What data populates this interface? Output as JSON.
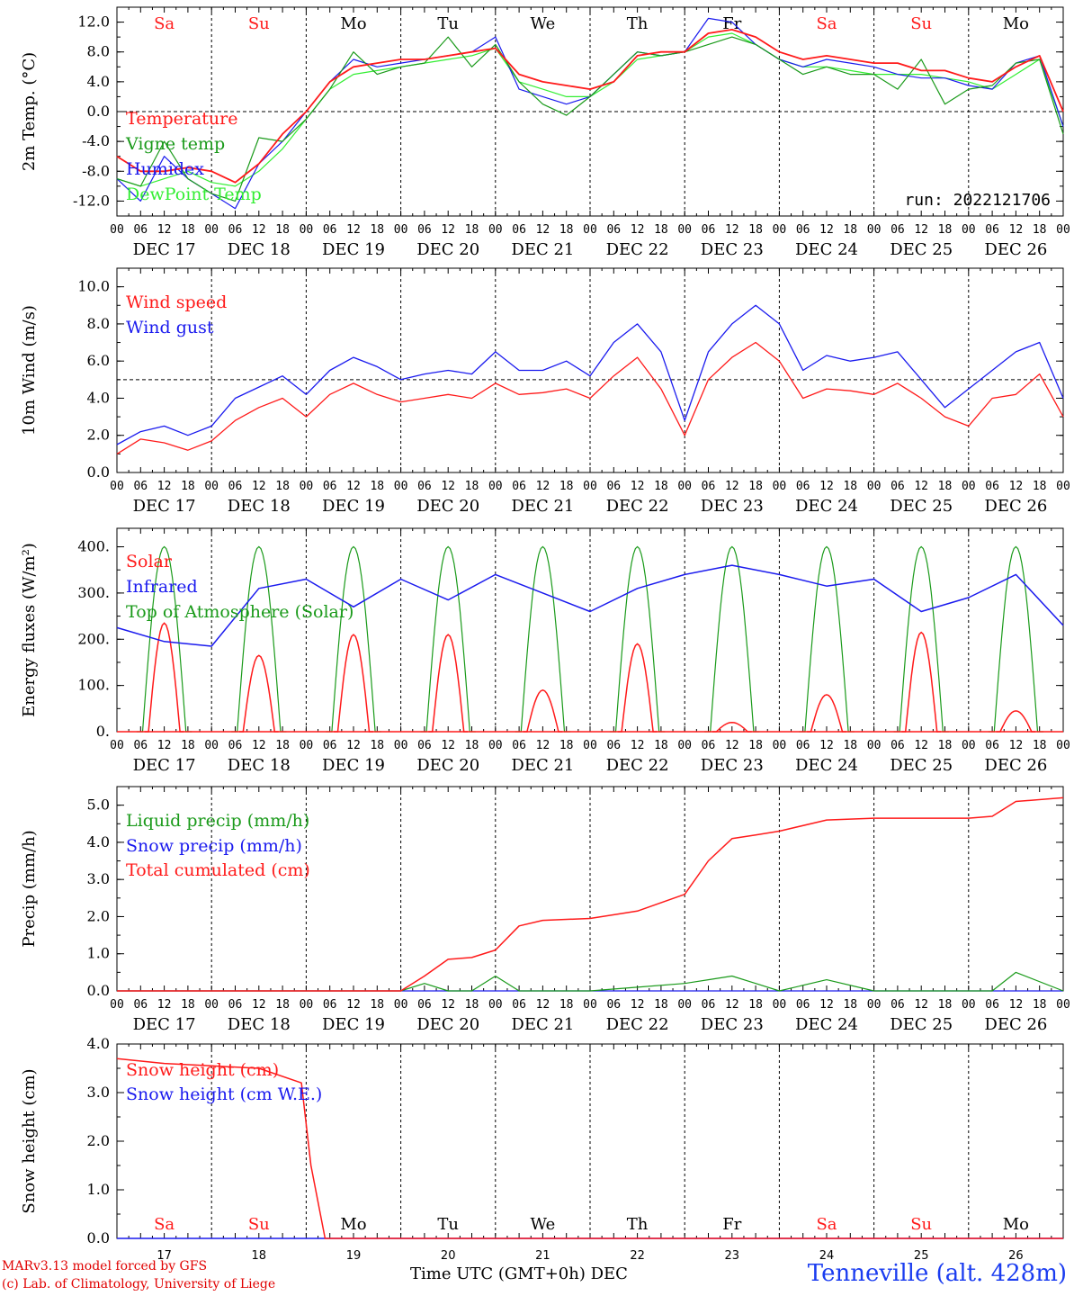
{
  "run_label": "run: 2022121706",
  "time_axis": {
    "hour_ticks": [
      "00",
      "06",
      "12",
      "18"
    ],
    "final_tick": "00",
    "dates": [
      "DEC 17",
      "DEC 18",
      "DEC 19",
      "DEC 20",
      "DEC 21",
      "DEC 22",
      "DEC 23",
      "DEC 24",
      "DEC 25",
      "DEC 26"
    ],
    "weekdays": [
      "Sa",
      "Su",
      "Mo",
      "Tu",
      "We",
      "Th",
      "Fr",
      "Sa",
      "Su",
      "Mo"
    ],
    "weekend_flags": [
      true,
      true,
      false,
      false,
      false,
      false,
      false,
      true,
      true,
      false
    ],
    "day_numbers": [
      "17",
      "18",
      "19",
      "20",
      "21",
      "22",
      "23",
      "24",
      "25",
      "26"
    ],
    "xlabel": "Time UTC (GMT+0h)",
    "month": "DEC"
  },
  "colors": {
    "red": "#ff1a1a",
    "green": "#1a9a1a",
    "blue": "#1a1aee",
    "lightgreen": "#33ee33",
    "weekend": "#ff1a1a"
  },
  "footer": {
    "line1": "MARv3.13 model forced by GFS",
    "line2": "(c) Lab. of Climatology, University of Liege",
    "station": "Tenneville (alt. 428m)"
  },
  "chart_data": [
    {
      "type": "line",
      "ylabel": "2m Temp. (°C)",
      "ylim": [
        -14,
        14
      ],
      "yticks": [
        "12.0",
        "8.0",
        "4.0",
        "0.0",
        "-4.0",
        "-8.0",
        "-12.0"
      ],
      "ytick_values": [
        12,
        8,
        4,
        0,
        -4,
        -8,
        -12
      ],
      "reference_line": 0,
      "x_days": [
        0,
        0.25,
        0.5,
        0.75,
        1,
        1.25,
        1.5,
        1.75,
        2,
        2.25,
        2.5,
        2.75,
        3,
        3.25,
        3.5,
        3.75,
        4,
        4.25,
        4.5,
        4.75,
        5,
        5.25,
        5.5,
        5.75,
        6,
        6.25,
        6.5,
        6.75,
        7,
        7.25,
        7.5,
        7.75,
        8,
        8.25,
        8.5,
        8.75,
        9,
        9.25,
        9.5,
        9.75,
        10
      ],
      "series": [
        {
          "name": "Temperature",
          "color": "red",
          "values": [
            -6,
            -8,
            -8,
            -7.5,
            -8,
            -9.5,
            -7,
            -3,
            0,
            4,
            6,
            6.5,
            7,
            7,
            7.5,
            8,
            8.5,
            5,
            4,
            3.5,
            3,
            4,
            7.5,
            8,
            8,
            10.5,
            11,
            10,
            8,
            7,
            7.5,
            7,
            6.5,
            6.5,
            5.5,
            5.5,
            4.5,
            4,
            6,
            7.5,
            0
          ]
        },
        {
          "name": "Vigne temp",
          "color": "green",
          "values": [
            -9,
            -10,
            -4,
            -9,
            -11,
            -12,
            -3.5,
            -4,
            -1,
            3,
            8,
            5,
            6,
            6.5,
            10,
            6,
            9,
            4,
            1,
            -0.5,
            2,
            5,
            8,
            7.5,
            8,
            9,
            10,
            9,
            7,
            5,
            6,
            5,
            5,
            3,
            7,
            1,
            3,
            3.5,
            6.5,
            7,
            -3
          ]
        },
        {
          "name": "Humidex",
          "color": "blue",
          "values": [
            -9,
            -12,
            -6,
            -9,
            -11,
            -13,
            -7,
            -4,
            0,
            4,
            7,
            6,
            6.5,
            7,
            7.5,
            8,
            10,
            3,
            2,
            1,
            2,
            5,
            8,
            7.5,
            8,
            12.5,
            12,
            9,
            7,
            6,
            7,
            6.5,
            6,
            5,
            4.5,
            4.5,
            3.5,
            3,
            6.5,
            7.5,
            -2
          ]
        },
        {
          "name": "DewPoint Temp",
          "color": "lightgreen",
          "values": [
            -9,
            -10,
            -9,
            -8,
            -9.5,
            -10,
            -8,
            -5,
            -1,
            3,
            5,
            5.5,
            6,
            6.5,
            7,
            7.5,
            8.5,
            4,
            3,
            2,
            2,
            4,
            7,
            7.5,
            8,
            10,
            10.5,
            9,
            7,
            6,
            6,
            5.5,
            5,
            5,
            5,
            4.5,
            4,
            3,
            5,
            7,
            -2
          ]
        }
      ]
    },
    {
      "type": "line",
      "ylabel": "10m Wind (m/s)",
      "ylim": [
        0,
        11
      ],
      "yticks": [
        "10.0",
        "8.0",
        "6.0",
        "4.0",
        "2.0",
        "0.0"
      ],
      "ytick_values": [
        10,
        8,
        6,
        4,
        2,
        0
      ],
      "reference_line": 5,
      "x_days": [
        0,
        0.25,
        0.5,
        0.75,
        1,
        1.25,
        1.5,
        1.75,
        2,
        2.25,
        2.5,
        2.75,
        3,
        3.25,
        3.5,
        3.75,
        4,
        4.25,
        4.5,
        4.75,
        5,
        5.25,
        5.5,
        5.75,
        6,
        6.25,
        6.5,
        6.75,
        7,
        7.25,
        7.5,
        7.75,
        8,
        8.25,
        8.5,
        8.75,
        9,
        9.25,
        9.5,
        9.75,
        10
      ],
      "series": [
        {
          "name": "Wind speed",
          "color": "red",
          "values": [
            1,
            1.8,
            1.6,
            1.2,
            1.7,
            2.8,
            3.5,
            4,
            3,
            4.2,
            4.8,
            4.2,
            3.8,
            4,
            4.2,
            4,
            4.8,
            4.2,
            4.3,
            4.5,
            4,
            5.2,
            6.2,
            4.5,
            2,
            5,
            6.2,
            7,
            6,
            4,
            4.5,
            4.4,
            4.2,
            4.8,
            4,
            3,
            2.5,
            4,
            4.2,
            5.3,
            3
          ]
        },
        {
          "name": "Wind gust",
          "color": "blue",
          "values": [
            1.5,
            2.2,
            2.5,
            2,
            2.5,
            4,
            4.6,
            5.2,
            4.2,
            5.5,
            6.2,
            5.7,
            5,
            5.3,
            5.5,
            5.3,
            6.5,
            5.5,
            5.5,
            6,
            5.2,
            7,
            8,
            6.5,
            2.8,
            6.5,
            8,
            9,
            8,
            5.5,
            6.3,
            6,
            6.2,
            6.5,
            5,
            3.5,
            4.5,
            5.5,
            6.5,
            7,
            4
          ]
        }
      ]
    },
    {
      "type": "line",
      "ylabel": "Energy fluxes (W/m²)",
      "ylim": [
        0,
        440
      ],
      "yticks": [
        "400.",
        "300.",
        "200.",
        "100.",
        "0."
      ],
      "ytick_values": [
        400,
        300,
        200,
        100,
        0
      ],
      "solar_peaks": [
        235,
        165,
        210,
        210,
        90,
        190,
        20,
        80,
        215,
        45
      ],
      "toa_peak": 400,
      "infrared": {
        "x_days": [
          0,
          0.5,
          1,
          1.5,
          2,
          2.5,
          3,
          3.5,
          4,
          4.5,
          5,
          5.5,
          6,
          6.5,
          7,
          7.5,
          8,
          8.5,
          9,
          9.5,
          10
        ],
        "values": [
          225,
          195,
          185,
          310,
          330,
          270,
          330,
          285,
          340,
          300,
          260,
          310,
          340,
          360,
          340,
          315,
          330,
          260,
          290,
          340,
          230
        ]
      },
      "series": [
        {
          "name": "Solar",
          "color": "red"
        },
        {
          "name": "Infrared",
          "color": "blue"
        },
        {
          "name": "Top of Atmosphere (Solar)",
          "color": "green"
        }
      ]
    },
    {
      "type": "line",
      "ylabel": "Precip (mm/h)",
      "ylim": [
        0,
        5.5
      ],
      "yticks": [
        "5.0",
        "4.0",
        "3.0",
        "2.0",
        "1.0",
        "0.0"
      ],
      "ytick_values": [
        5,
        4,
        3,
        2,
        1,
        0
      ],
      "x_days": [
        0,
        1,
        2,
        3,
        3.25,
        3.5,
        3.75,
        4,
        4.25,
        4.5,
        5,
        5.5,
        6,
        6.25,
        6.5,
        6.75,
        7,
        7.5,
        8,
        8.5,
        9,
        9.25,
        9.5,
        10
      ],
      "series": [
        {
          "name": "Liquid precip (mm/h)",
          "color": "green",
          "values": [
            0,
            0,
            0,
            0,
            0.2,
            0,
            0,
            0.4,
            0,
            0,
            0,
            0.1,
            0.2,
            0.3,
            0.4,
            0.2,
            0,
            0.3,
            0,
            0,
            0,
            0,
            0.5,
            0
          ]
        },
        {
          "name": "Snow precip (mm/h)",
          "color": "blue",
          "values": [
            0,
            0,
            0,
            0,
            0,
            0,
            0,
            0,
            0,
            0,
            0,
            0,
            0,
            0,
            0,
            0,
            0,
            0,
            0,
            0,
            0,
            0,
            0,
            0
          ]
        },
        {
          "name": "Total cumulated (cm)",
          "color": "red",
          "values": [
            0,
            0,
            0,
            0,
            0.4,
            0.85,
            0.9,
            1.1,
            1.75,
            1.9,
            1.95,
            2.15,
            2.6,
            3.5,
            4.1,
            4.2,
            4.3,
            4.6,
            4.65,
            4.65,
            4.65,
            4.7,
            5.1,
            5.2
          ]
        }
      ]
    },
    {
      "type": "line",
      "ylabel": "Snow height (cm)",
      "ylim": [
        0,
        4
      ],
      "yticks": [
        "4.0",
        "3.0",
        "2.0",
        "1.0",
        "0.0"
      ],
      "ytick_values": [
        4,
        3,
        2,
        1,
        0
      ],
      "x_days": [
        0,
        0.5,
        1,
        1.5,
        1.95,
        2.05,
        2.2,
        10
      ],
      "series": [
        {
          "name": "Snow height (cm)",
          "color": "red",
          "values": [
            3.7,
            3.6,
            3.55,
            3.5,
            3.2,
            1.5,
            0,
            0
          ]
        },
        {
          "name": "Snow height (cm W.E.)",
          "color": "blue",
          "values": [
            0,
            0,
            0,
            0,
            0,
            0,
            0,
            0
          ]
        }
      ]
    }
  ]
}
